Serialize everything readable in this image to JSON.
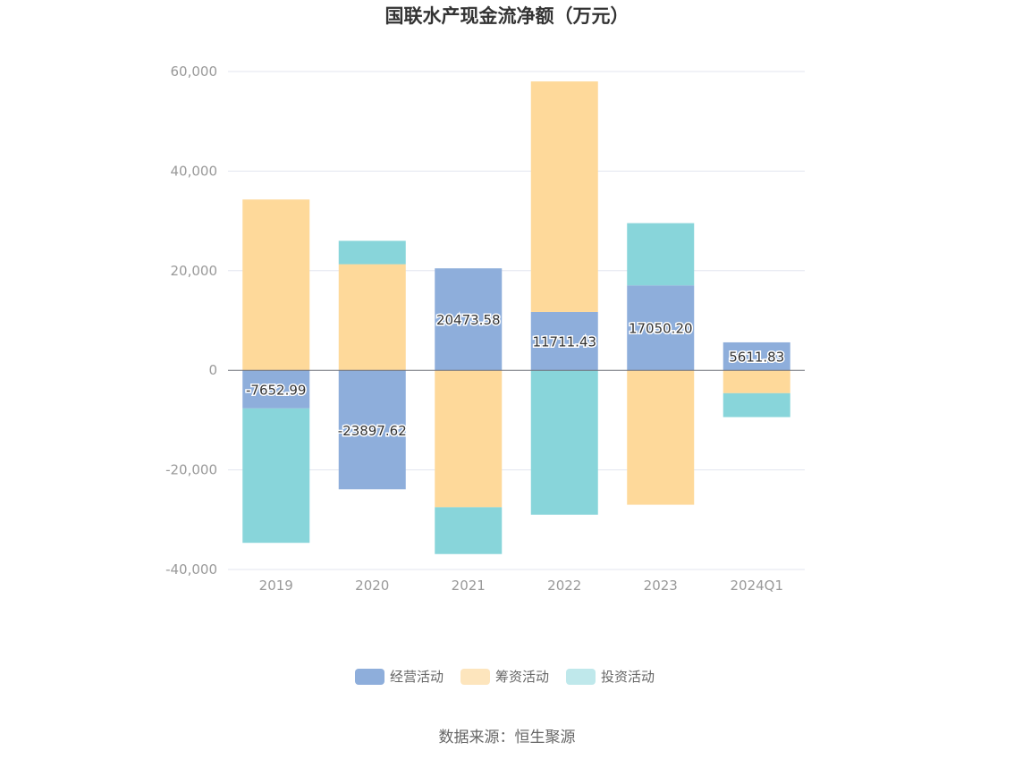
{
  "chart_data": {
    "type": "bar",
    "stacked": true,
    "title": "国联水产现金流净额（万元）",
    "xlabel": "",
    "ylabel": "",
    "categories": [
      "2019",
      "2020",
      "2021",
      "2022",
      "2023",
      "2024Q1"
    ],
    "ylim": [
      -40000,
      60000
    ],
    "yticks": [
      60000,
      40000,
      20000,
      0,
      -20000,
      -40000
    ],
    "ytick_labels": [
      "60,000",
      "40,000",
      "20,000",
      "0",
      "-20,000",
      "-40,000"
    ],
    "grid": true,
    "legend_position": "bottom",
    "series": [
      {
        "name": "经营活动",
        "color": "#8eaedb",
        "values": [
          -7652.99,
          -23897.62,
          20473.58,
          11711.43,
          17050.2,
          5611.83
        ],
        "labels": [
          "-7652.99",
          "-23897.62",
          "20473.58",
          "11711.43",
          "17050.20",
          "5611.83"
        ]
      },
      {
        "name": "筹资活动",
        "color": "#fed99a",
        "values": [
          34300,
          21300,
          -27500,
          46300,
          -27000,
          -4600
        ]
      },
      {
        "name": "投资活动",
        "color": "#88d5da",
        "values": [
          -27000,
          4700,
          -9400,
          -29000,
          12500,
          -4800
        ]
      }
    ],
    "source": "数据来源：恒生聚源"
  }
}
